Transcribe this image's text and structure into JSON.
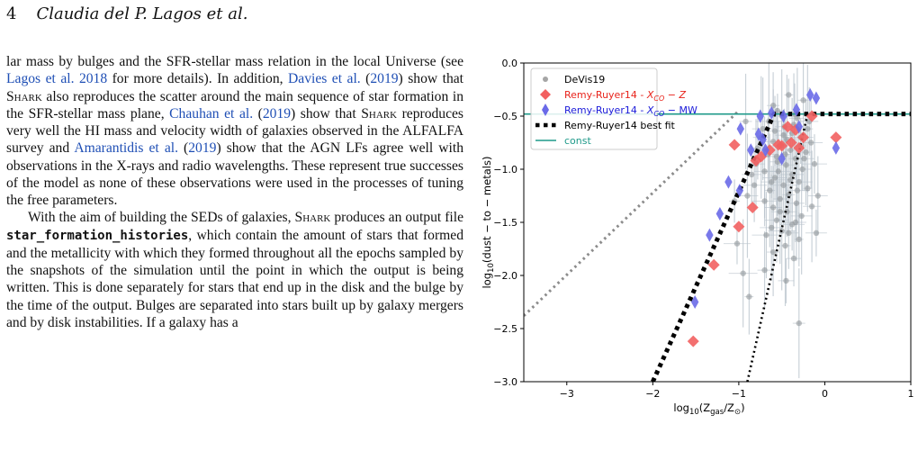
{
  "header": {
    "page_number": "4",
    "authors": "Claudia del P. Lagos et al."
  },
  "body": {
    "p1": [
      {
        "t": "lar mass by bulges and the SFR-stellar mass relation in the local Universe (see "
      },
      {
        "t": "Lagos et al. 2018",
        "link": true
      },
      {
        "t": " for more details). In addition, "
      },
      {
        "t": "Davies et al.",
        "link": true
      },
      {
        "t": " ("
      },
      {
        "t": "2019",
        "link": true
      },
      {
        "t": ") show that "
      },
      {
        "t": "Shark",
        "sc": true
      },
      {
        "t": " also reproduces the scatter around the main sequence of star formation in the SFR-stellar mass plane, "
      },
      {
        "t": "Chauhan et al.",
        "link": true
      },
      {
        "t": " ("
      },
      {
        "t": "2019",
        "link": true
      },
      {
        "t": ") show that "
      },
      {
        "t": "Shark",
        "sc": true
      },
      {
        "t": " reproduces very well the HI mass and velocity width of galaxies observed in the ALFALFA survey and "
      },
      {
        "t": "Amarantidis et al.",
        "link": true
      },
      {
        "t": " ("
      },
      {
        "t": "2019",
        "link": true
      },
      {
        "t": ") show that the AGN LFs agree well with observations in the X-rays and radio wavelengths. These represent true successes of the model as none of these observations were used in the processes of tuning the free parameters."
      }
    ],
    "p2": [
      {
        "t": "With the aim of building the SEDs of galaxies, "
      },
      {
        "t": "Shark",
        "sc": true
      },
      {
        "t": " produces an output file "
      },
      {
        "t": "star_formation_histories",
        "mono": true
      },
      {
        "t": ", which contain the amount of stars that formed and the metallicity with which they formed throughout all the epochs sampled by the snapshots of the simulation until the point in which the output is being written. This is done separately for stars that end up in the disk and the bulge by the time of the output. Bulges are separated into stars built up by galaxy mergers and by disk instabilities. If a galaxy has a"
      }
    ]
  },
  "chart_data": {
    "type": "scatter",
    "xlabel": "log10(Zgas/Z⊙)",
    "ylabel": "log10(dust − to − metals)",
    "xlim": [
      -3.5,
      1.0
    ],
    "ylim": [
      -3.0,
      0.0
    ],
    "xticks": [
      -3,
      -2,
      -1,
      0,
      1
    ],
    "yticks": [
      0.0,
      -0.5,
      -1.0,
      -1.5,
      -2.0,
      -2.5,
      -3.0
    ],
    "legend_placement": "top-left",
    "legend": [
      {
        "id": "devis",
        "label": "DeVis19",
        "color": "#a5a5a5",
        "marker": "circle"
      },
      {
        "id": "rr_z",
        "label": "Remy-Ruyer14 - X_CO − Z",
        "color": "#f26060",
        "marker": "diamond"
      },
      {
        "id": "rr_mw",
        "label": "Remy-Ruyer14 - X_CO − MW",
        "color": "#6a6ae8",
        "marker": "thin-diamond"
      },
      {
        "id": "rr_fit",
        "label": "Remy-Ruyer14 best fit",
        "color": "#000000",
        "marker": "thick-dotted-line"
      },
      {
        "id": "const",
        "label": "const",
        "color": "#1f9a8a",
        "marker": "line"
      }
    ],
    "lines": {
      "const_y": -0.48,
      "broken_power_law": [
        [
          -2.0,
          -3.0
        ],
        [
          -0.59,
          -0.48
        ],
        [
          1.0,
          -0.48
        ]
      ],
      "steep_dotted": [
        [
          -0.9,
          -3.0
        ],
        [
          -0.2,
          -0.48
        ]
      ],
      "grey_dotted": [
        [
          -3.5,
          -2.38
        ],
        [
          -1.0,
          -0.45
        ]
      ]
    },
    "series": [
      {
        "name": "Remy-Ruyer14 - X_CO − Z",
        "points": [
          [
            -0.15,
            -0.5
          ],
          [
            -0.5,
            -0.78
          ],
          [
            -0.34,
            -0.63
          ],
          [
            -0.64,
            -0.82
          ],
          [
            -0.3,
            -0.8
          ],
          [
            -0.25,
            -0.7
          ],
          [
            -0.43,
            -0.6
          ],
          [
            -1.05,
            -0.77
          ],
          [
            -0.8,
            -0.92
          ],
          [
            0.13,
            -0.7
          ],
          [
            -1.0,
            -1.54
          ],
          [
            -1.29,
            -1.9
          ],
          [
            -1.53,
            -2.62
          ],
          [
            -0.84,
            -1.36
          ],
          [
            -0.54,
            -0.77
          ],
          [
            -0.39,
            -0.75
          ],
          [
            -0.74,
            -0.88
          ]
        ]
      },
      {
        "name": "Remy-Ruyer14 - X_CO − MW",
        "points": [
          [
            -0.17,
            -0.3
          ],
          [
            -0.1,
            -0.33
          ],
          [
            -0.33,
            -0.44
          ],
          [
            -0.62,
            -0.47
          ],
          [
            -0.48,
            -0.5
          ],
          [
            -0.75,
            -0.5
          ],
          [
            -0.98,
            -0.62
          ],
          [
            -0.77,
            -0.67
          ],
          [
            -0.72,
            -0.72
          ],
          [
            -0.86,
            -0.82
          ],
          [
            -0.69,
            -0.82
          ],
          [
            -0.5,
            -0.9
          ],
          [
            -0.3,
            -0.6
          ],
          [
            -1.12,
            -1.12
          ],
          [
            -1.22,
            -1.42
          ],
          [
            -1.34,
            -1.62
          ],
          [
            -1.51,
            -2.25
          ],
          [
            0.13,
            -0.8
          ],
          [
            -0.99,
            -1.2
          ]
        ]
      },
      {
        "name": "DeVis19",
        "points": [
          [
            -0.42,
            -0.3
          ],
          [
            -0.25,
            -0.35
          ],
          [
            -0.6,
            -0.4
          ],
          [
            -0.55,
            -0.45
          ],
          [
            -0.32,
            -0.52
          ],
          [
            -0.18,
            -0.55
          ],
          [
            -0.47,
            -0.6
          ],
          [
            -0.72,
            -0.62
          ],
          [
            -0.38,
            -0.66
          ],
          [
            -0.28,
            -0.7
          ],
          [
            -0.6,
            -0.74
          ],
          [
            -0.5,
            -0.78
          ],
          [
            -0.4,
            -0.82
          ],
          [
            -0.22,
            -0.84
          ],
          [
            -0.66,
            -0.86
          ],
          [
            -0.34,
            -0.9
          ],
          [
            -0.55,
            -0.93
          ],
          [
            -0.45,
            -0.96
          ],
          [
            -0.26,
            -1.0
          ],
          [
            -0.7,
            -1.02
          ],
          [
            -0.38,
            -1.05
          ],
          [
            -0.58,
            -1.08
          ],
          [
            -0.3,
            -1.12
          ],
          [
            -0.48,
            -1.15
          ],
          [
            -0.2,
            -1.18
          ],
          [
            -0.64,
            -1.2
          ],
          [
            -0.42,
            -1.24
          ],
          [
            -0.52,
            -1.28
          ],
          [
            -0.33,
            -1.32
          ],
          [
            -0.6,
            -1.36
          ],
          [
            -0.44,
            -1.4
          ],
          [
            -0.27,
            -1.44
          ],
          [
            -0.56,
            -1.48
          ],
          [
            -0.38,
            -1.52
          ],
          [
            -0.5,
            -1.58
          ],
          [
            -0.68,
            -1.62
          ],
          [
            -0.3,
            -1.66
          ],
          [
            -0.46,
            -1.72
          ],
          [
            -0.6,
            -1.78
          ],
          [
            -0.36,
            -1.84
          ],
          [
            -0.74,
            -0.7
          ],
          [
            -0.8,
            -0.95
          ],
          [
            -0.85,
            -1.05
          ],
          [
            -0.9,
            -1.25
          ],
          [
            -0.16,
            -0.75
          ],
          [
            -0.12,
            -0.95
          ],
          [
            -0.65,
            -0.55
          ],
          [
            -0.5,
            -0.5
          ],
          [
            -0.35,
            -0.48
          ],
          [
            -0.2,
            -0.62
          ],
          [
            -0.92,
            -0.55
          ],
          [
            -0.78,
            -0.8
          ],
          [
            -0.44,
            -0.72
          ],
          [
            -0.56,
            -0.88
          ],
          [
            -0.24,
            -0.9
          ],
          [
            -0.62,
            -1.12
          ],
          [
            -0.4,
            -1.1
          ],
          [
            -0.32,
            -1.2
          ],
          [
            -0.7,
            -1.3
          ],
          [
            -0.54,
            -1.02
          ],
          [
            -0.46,
            -0.86
          ],
          [
            -0.28,
            -0.78
          ],
          [
            -0.36,
            -0.58
          ],
          [
            -0.58,
            -0.64
          ],
          [
            -0.48,
            -0.68
          ],
          [
            -0.52,
            -1.4
          ],
          [
            -0.42,
            -1.6
          ],
          [
            -0.34,
            -1.5
          ],
          [
            -0.62,
            -1.55
          ],
          [
            -0.82,
            -1.15
          ],
          [
            -1.02,
            -1.7
          ],
          [
            -0.95,
            -1.98
          ],
          [
            -0.88,
            -2.2
          ],
          [
            -1.05,
            -1.3
          ],
          [
            -0.3,
            -2.45
          ],
          [
            -0.7,
            -1.95
          ],
          [
            -0.45,
            -2.05
          ],
          [
            -0.15,
            -1.35
          ],
          [
            -0.08,
            -1.25
          ],
          [
            -0.1,
            -1.6
          ]
        ]
      }
    ]
  }
}
